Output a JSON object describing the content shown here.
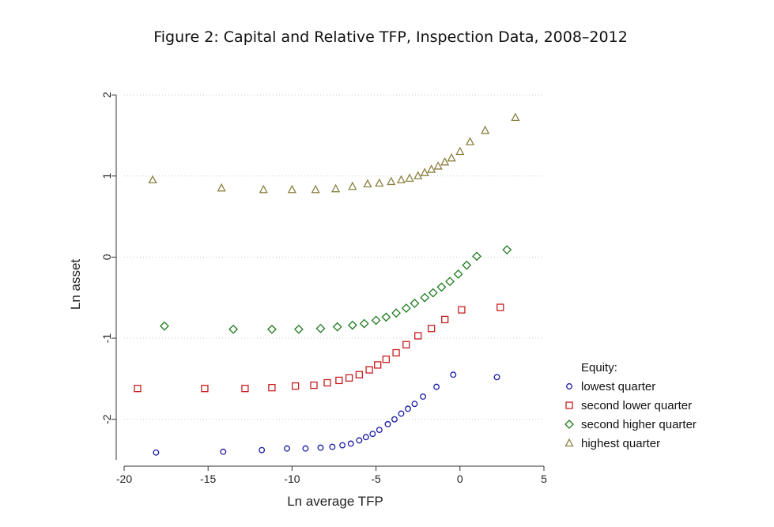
{
  "figure_title": "Figure 2: Capital and Relative TFP, Inspection Data, 2008–2012",
  "chart_data": {
    "type": "scatter",
    "xlabel": "Ln average TFP",
    "ylabel": "Ln asset",
    "xlim": [
      -20,
      5
    ],
    "ylim": [
      -2.5,
      2.05
    ],
    "xticks": [
      -20,
      -15,
      -10,
      -5,
      0,
      5
    ],
    "yticks": [
      2,
      1,
      0,
      -1,
      -2
    ],
    "grid": "dotted horizontal",
    "legend": {
      "title": "Equity:",
      "placement": "bottom-right outside"
    },
    "series": [
      {
        "name": "lowest quarter",
        "marker": "circle",
        "color": "#1a1aa6",
        "points": [
          [
            -18.1,
            -2.41
          ],
          [
            -14.1,
            -2.4
          ],
          [
            -11.8,
            -2.38
          ],
          [
            -10.3,
            -2.36
          ],
          [
            -9.2,
            -2.36
          ],
          [
            -8.3,
            -2.35
          ],
          [
            -7.6,
            -2.34
          ],
          [
            -7.0,
            -2.32
          ],
          [
            -6.5,
            -2.3
          ],
          [
            -6.0,
            -2.26
          ],
          [
            -5.6,
            -2.22
          ],
          [
            -5.2,
            -2.18
          ],
          [
            -4.8,
            -2.13
          ],
          [
            -4.3,
            -2.06
          ],
          [
            -3.9,
            -2.0
          ],
          [
            -3.5,
            -1.93
          ],
          [
            -3.1,
            -1.87
          ],
          [
            -2.7,
            -1.81
          ],
          [
            -2.2,
            -1.72
          ],
          [
            -1.4,
            -1.6
          ],
          [
            -0.4,
            -1.45
          ],
          [
            2.2,
            -1.48
          ]
        ]
      },
      {
        "name": "second lower quarter",
        "marker": "square",
        "color": "#c81e1e",
        "points": [
          [
            -19.2,
            -1.62
          ],
          [
            -15.2,
            -1.62
          ],
          [
            -12.8,
            -1.62
          ],
          [
            -11.2,
            -1.61
          ],
          [
            -9.8,
            -1.59
          ],
          [
            -8.7,
            -1.58
          ],
          [
            -7.9,
            -1.55
          ],
          [
            -7.2,
            -1.52
          ],
          [
            -6.6,
            -1.49
          ],
          [
            -6.0,
            -1.45
          ],
          [
            -5.4,
            -1.39
          ],
          [
            -4.9,
            -1.33
          ],
          [
            -4.4,
            -1.26
          ],
          [
            -3.8,
            -1.18
          ],
          [
            -3.2,
            -1.08
          ],
          [
            -2.5,
            -0.97
          ],
          [
            -1.7,
            -0.88
          ],
          [
            -0.9,
            -0.77
          ],
          [
            0.1,
            -0.65
          ],
          [
            2.4,
            -0.62
          ]
        ]
      },
      {
        "name": "second higher quarter",
        "marker": "diamond",
        "color": "#1e7a1e",
        "points": [
          [
            -17.6,
            -0.85
          ],
          [
            -13.5,
            -0.89
          ],
          [
            -11.2,
            -0.89
          ],
          [
            -9.6,
            -0.89
          ],
          [
            -8.3,
            -0.88
          ],
          [
            -7.3,
            -0.86
          ],
          [
            -6.4,
            -0.84
          ],
          [
            -5.7,
            -0.82
          ],
          [
            -5.0,
            -0.78
          ],
          [
            -4.4,
            -0.74
          ],
          [
            -3.8,
            -0.69
          ],
          [
            -3.2,
            -0.63
          ],
          [
            -2.7,
            -0.57
          ],
          [
            -2.1,
            -0.5
          ],
          [
            -1.6,
            -0.44
          ],
          [
            -1.1,
            -0.37
          ],
          [
            -0.6,
            -0.3
          ],
          [
            -0.1,
            -0.21
          ],
          [
            0.4,
            -0.1
          ],
          [
            1.0,
            0.01
          ],
          [
            2.8,
            0.09
          ]
        ]
      },
      {
        "name": "highest quarter",
        "marker": "triangle",
        "color": "#8a8040",
        "points": [
          [
            -18.3,
            0.95
          ],
          [
            -14.2,
            0.85
          ],
          [
            -11.7,
            0.83
          ],
          [
            -10.0,
            0.83
          ],
          [
            -8.6,
            0.83
          ],
          [
            -7.4,
            0.84
          ],
          [
            -6.4,
            0.87
          ],
          [
            -5.5,
            0.9
          ],
          [
            -4.8,
            0.91
          ],
          [
            -4.1,
            0.93
          ],
          [
            -3.5,
            0.95
          ],
          [
            -3.0,
            0.97
          ],
          [
            -2.5,
            1.0
          ],
          [
            -2.1,
            1.04
          ],
          [
            -1.7,
            1.08
          ],
          [
            -1.3,
            1.12
          ],
          [
            -0.9,
            1.17
          ],
          [
            -0.5,
            1.22
          ],
          [
            0.0,
            1.3
          ],
          [
            0.6,
            1.42
          ],
          [
            1.5,
            1.56
          ],
          [
            3.3,
            1.72
          ]
        ]
      }
    ]
  }
}
